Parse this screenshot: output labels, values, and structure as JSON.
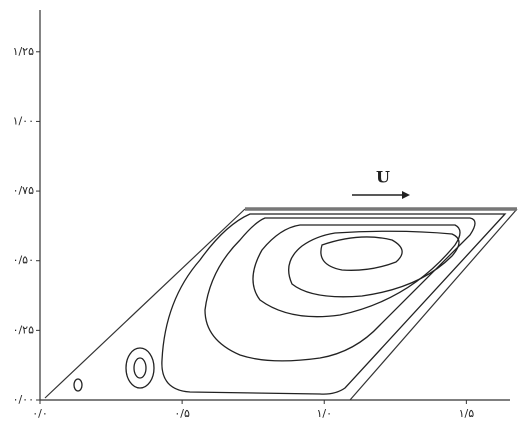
{
  "chart_data": {
    "type": "streamlines",
    "annotation": "U",
    "xlim": [
      0,
      1.65
    ],
    "ylim": [
      0,
      1.4
    ],
    "xticks": [
      {
        "value": 0,
        "label": "۰/۰"
      },
      {
        "value": 0.5,
        "label": "۰/۵"
      },
      {
        "value": 1.0,
        "label": "۱/۰"
      },
      {
        "value": 1.5,
        "label": "۱/۵"
      }
    ],
    "yticks": [
      {
        "value": 0,
        "label": "۰/۰۰"
      },
      {
        "value": 0.25,
        "label": "۰/۲۵"
      },
      {
        "value": 0.5,
        "label": "۰/۵۰"
      },
      {
        "value": 0.75,
        "label": "۰/۷۵"
      },
      {
        "value": 1.0,
        "label": "۱/۰۰"
      },
      {
        "value": 1.25,
        "label": "۱/۲۵"
      }
    ]
  }
}
